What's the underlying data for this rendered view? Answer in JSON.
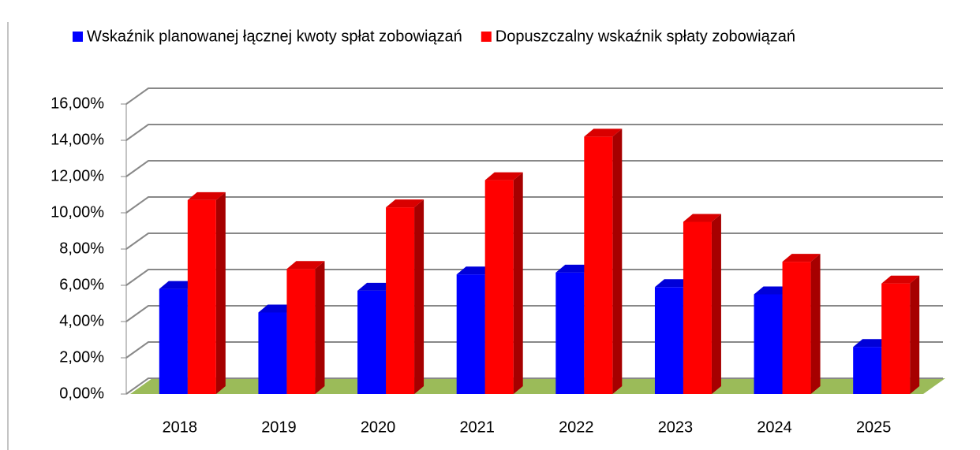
{
  "chart_data": {
    "type": "bar3d",
    "categories": [
      "2018",
      "2019",
      "2020",
      "2021",
      "2022",
      "2023",
      "2024",
      "2025"
    ],
    "series": [
      {
        "name": "Wskaźnik planowanej łącznej kwoty spłat zobowiązań",
        "color": "#0000ff",
        "values": [
          5.8,
          4.5,
          5.7,
          6.6,
          6.7,
          5.9,
          5.5,
          2.6
        ]
      },
      {
        "name": "Dopuszczalny wskaźnik spłaty zobowiązań",
        "color": "#ff0000",
        "values": [
          10.7,
          6.9,
          10.3,
          11.8,
          14.2,
          9.5,
          7.3,
          6.1
        ]
      }
    ],
    "ylim": [
      0,
      16
    ],
    "yticks": [
      {
        "value": 0,
        "label": "0,00%"
      },
      {
        "value": 2,
        "label": "2,00%"
      },
      {
        "value": 4,
        "label": "4,00%"
      },
      {
        "value": 6,
        "label": "6,00%"
      },
      {
        "value": 8,
        "label": "8,00%"
      },
      {
        "value": 10,
        "label": "10,00%"
      },
      {
        "value": 12,
        "label": "12,00%"
      },
      {
        "value": 14,
        "label": "14,00%"
      },
      {
        "value": 16,
        "label": "16,00%"
      }
    ],
    "grid": true,
    "legend": "top",
    "floor_color": "#9bbb59"
  }
}
